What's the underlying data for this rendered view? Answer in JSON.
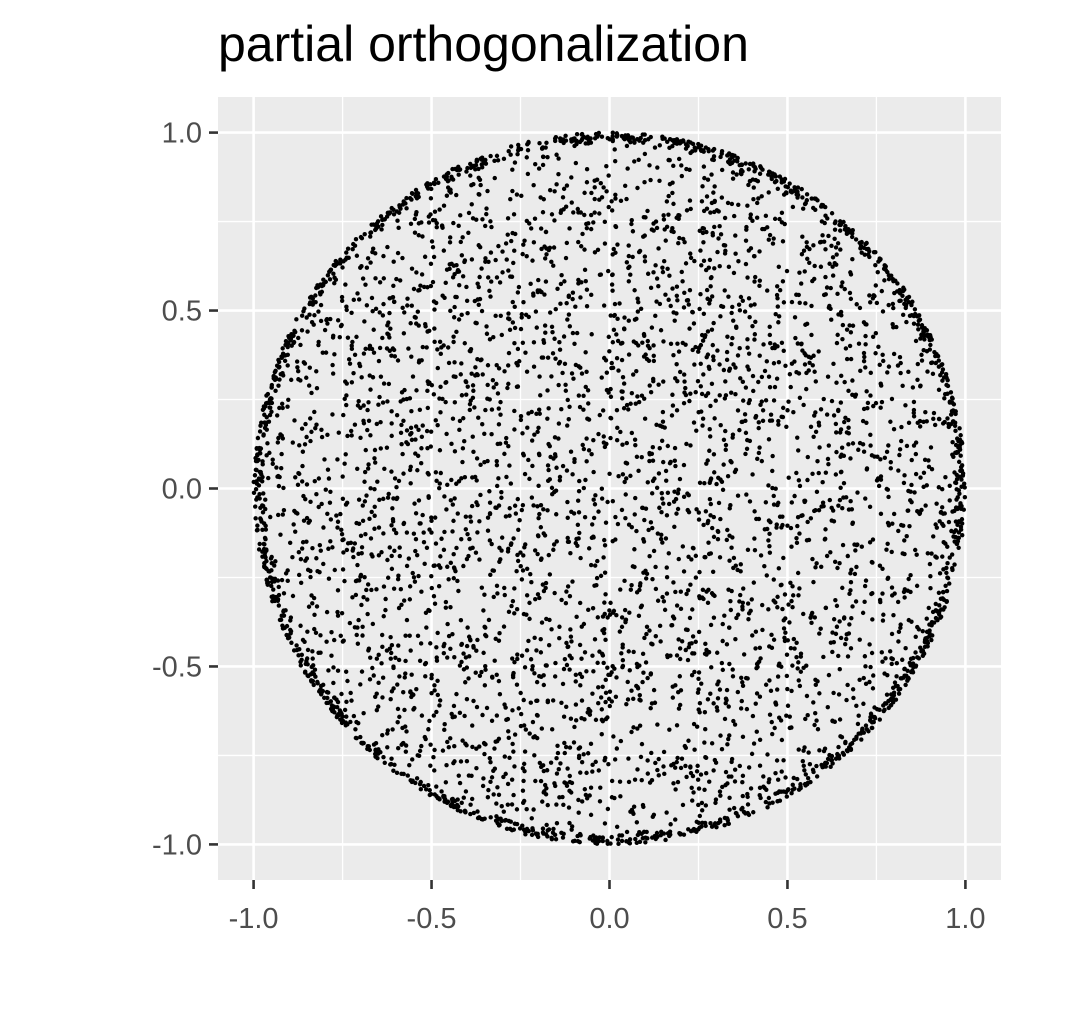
{
  "chart_data": {
    "type": "scatter",
    "title": "partial orthogonalization",
    "xlabel": "",
    "ylabel": "",
    "xlim": [
      -1.1,
      1.1
    ],
    "ylim": [
      -1.1,
      1.1
    ],
    "x_ticks": [
      -1.0,
      -0.5,
      0.0,
      0.5,
      1.0
    ],
    "x_tick_labels": [
      "-1.0",
      "-0.5",
      "0.0",
      "0.5",
      "1.0"
    ],
    "y_ticks": [
      1.0,
      0.5,
      0.0,
      -0.5,
      -1.0
    ],
    "y_tick_labels": [
      "1.0",
      "0.5",
      "0.0",
      "-0.5",
      "-1.0"
    ],
    "grid": true,
    "legend": "none",
    "panel_color": "#ebebeb",
    "gridline_color": "#ffffff",
    "point_color": "#000000",
    "distribution": {
      "shape": "unit disk",
      "center": [
        0.0,
        0.0
      ],
      "radius": 1.0,
      "approx_point_count": 5000,
      "note_edge_density": "denser near the circular boundary"
    }
  }
}
